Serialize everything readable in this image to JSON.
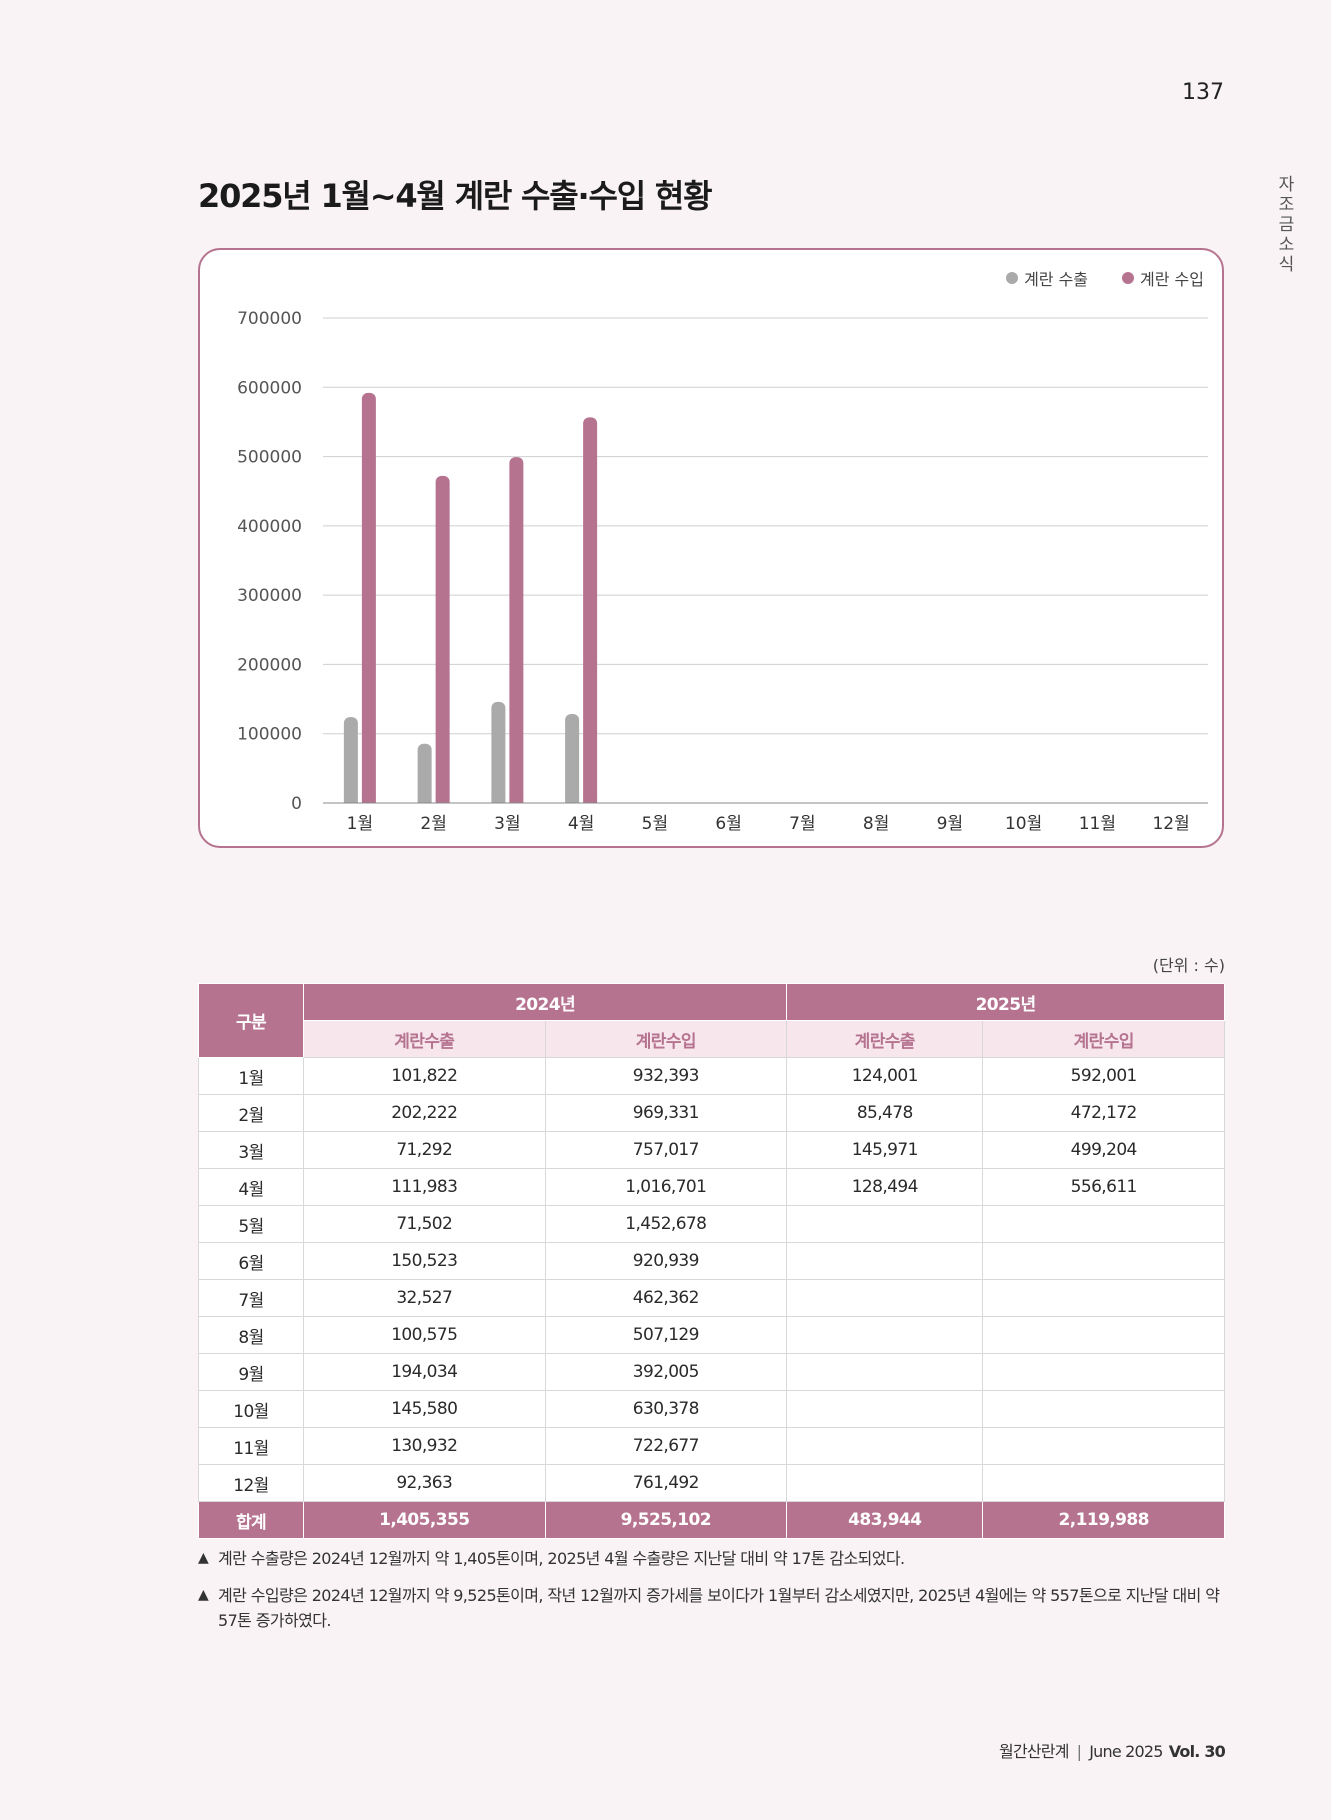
{
  "page_number": "137",
  "side_label": "자조금소식",
  "title": "2025년 1월~4월 계란 수출·수입 현황",
  "legend": [
    {
      "label": "계란 수출",
      "color": "#aaaaaa"
    },
    {
      "label": "계란 수입",
      "color": "#b5738f"
    }
  ],
  "chart_data": {
    "type": "bar",
    "categories": [
      "1월",
      "2월",
      "3월",
      "4월",
      "5월",
      "6월",
      "7월",
      "8월",
      "9월",
      "10월",
      "11월",
      "12월"
    ],
    "series": [
      {
        "name": "계란 수출",
        "color": "#aaaaaa",
        "values": [
          124001,
          85478,
          145971,
          128494,
          null,
          null,
          null,
          null,
          null,
          null,
          null,
          null
        ]
      },
      {
        "name": "계란 수입",
        "color": "#b5738f",
        "values": [
          592001,
          472172,
          499204,
          556611,
          null,
          null,
          null,
          null,
          null,
          null,
          null,
          null
        ]
      }
    ],
    "yticks": [
      "0",
      "100000",
      "200000",
      "300000",
      "400000",
      "500000",
      "600000",
      "700000"
    ],
    "ylim": [
      0,
      700000
    ],
    "grid": true,
    "legend_position": "top-right"
  },
  "unit_note": "(단위 : 수)",
  "table": {
    "col_group": "구분",
    "years": [
      "2024년",
      "2025년"
    ],
    "sub_headers": [
      "계란수출",
      "계란수입",
      "계란수출",
      "계란수입"
    ],
    "rows": [
      {
        "month": "1월",
        "v": [
          "101,822",
          "932,393",
          "124,001",
          "592,001"
        ]
      },
      {
        "month": "2월",
        "v": [
          "202,222",
          "969,331",
          "85,478",
          "472,172"
        ]
      },
      {
        "month": "3월",
        "v": [
          "71,292",
          "757,017",
          "145,971",
          "499,204"
        ]
      },
      {
        "month": "4월",
        "v": [
          "111,983",
          "1,016,701",
          "128,494",
          "556,611"
        ]
      },
      {
        "month": "5월",
        "v": [
          "71,502",
          "1,452,678",
          "",
          ""
        ]
      },
      {
        "month": "6월",
        "v": [
          "150,523",
          "920,939",
          "",
          ""
        ]
      },
      {
        "month": "7월",
        "v": [
          "32,527",
          "462,362",
          "",
          ""
        ]
      },
      {
        "month": "8월",
        "v": [
          "100,575",
          "507,129",
          "",
          ""
        ]
      },
      {
        "month": "9월",
        "v": [
          "194,034",
          "392,005",
          "",
          ""
        ]
      },
      {
        "month": "10월",
        "v": [
          "145,580",
          "630,378",
          "",
          ""
        ]
      },
      {
        "month": "11월",
        "v": [
          "130,932",
          "722,677",
          "",
          ""
        ]
      },
      {
        "month": "12월",
        "v": [
          "92,363",
          "761,492",
          "",
          ""
        ]
      }
    ],
    "total": {
      "label": "합계",
      "v": [
        "1,405,355",
        "9,525,102",
        "483,944",
        "2,119,988"
      ]
    }
  },
  "notes": [
    {
      "icon": "▲",
      "text": "계란 수출량은 2024년 12월까지 약 1,405톤이며, 2025년 4월 수출량은 지난달 대비 약 17톤 감소되었다."
    },
    {
      "icon": "▲",
      "text": "계란 수입량은 2024년 12월까지 약 9,525톤이며, 작년 12월까지 증가세를 보이다가 1월부터 감소세였지만, 2025년 4월에는 약 557톤으로 지난달 대비 약 57톤 증가하였다."
    }
  ],
  "footer": {
    "magazine": "월간산란계",
    "issue": "June 2025",
    "vol": "Vol. 30"
  }
}
